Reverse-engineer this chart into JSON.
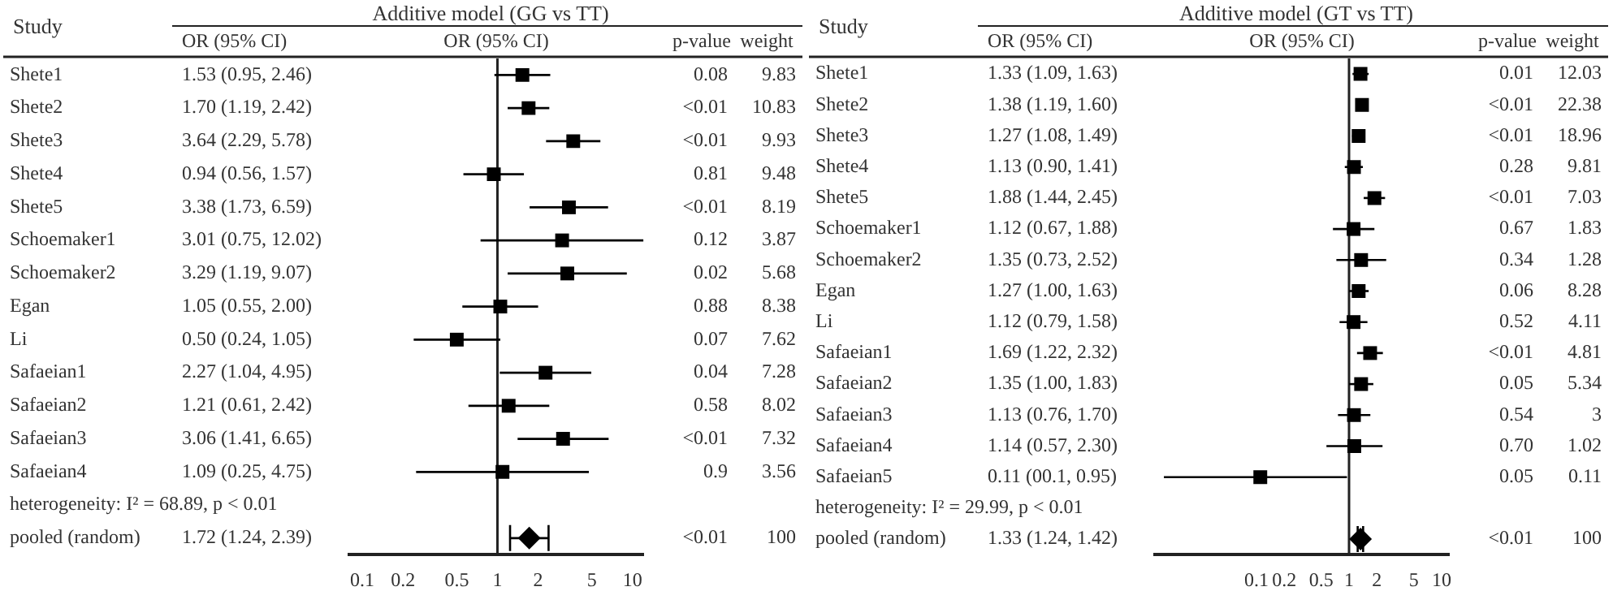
{
  "chart_data": [
    {
      "type": "scatter",
      "title": "Additive model (GG vs TT)",
      "ylabel": "Study",
      "orientation": "horizontal",
      "log": "x",
      "xlim": [
        0.08,
        12
      ],
      "xticks": [
        0.1,
        0.2,
        0.5,
        1,
        2,
        5,
        10
      ],
      "categories": [
        "Shete1",
        "Shete2",
        "Shete3",
        "Shete4",
        "Shete5",
        "Schoemaker1",
        "Schoemaker2",
        "Egan",
        "Li",
        "Safaeian1",
        "Safaeian2",
        "Safaeian3",
        "Safaeian4",
        "heterogeneity: I² = 68.89, p < 0.01",
        "pooled (random)"
      ],
      "series": [
        {
          "color": "#000000",
          "marker": "square",
          "values": [
            1.53,
            1.7,
            3.64,
            0.94,
            3.38,
            3.01,
            3.29,
            1.05,
            0.5,
            2.27,
            1.21,
            3.06,
            1.09,
            null,
            null
          ],
          "errors": [
            [
              0.95,
              2.46
            ],
            [
              1.19,
              2.42
            ],
            [
              2.29,
              5.78
            ],
            [
              0.56,
              1.57
            ],
            [
              1.73,
              6.59
            ],
            [
              0.75,
              12.02
            ],
            [
              1.19,
              9.07
            ],
            [
              0.55,
              2.0
            ],
            [
              0.24,
              1.05
            ],
            [
              1.04,
              4.95
            ],
            [
              0.61,
              2.42
            ],
            [
              1.41,
              6.65
            ],
            [
              0.25,
              4.75
            ],
            null,
            null
          ]
        },
        {
          "color": "#000000",
          "marker": "diamond",
          "values": [
            null,
            null,
            null,
            null,
            null,
            null,
            null,
            null,
            null,
            null,
            null,
            null,
            null,
            null,
            1.72
          ],
          "errors": [
            null,
            null,
            null,
            null,
            null,
            null,
            null,
            null,
            null,
            null,
            null,
            null,
            null,
            null,
            [
              1.24,
              2.39
            ]
          ]
        }
      ],
      "ref_lines": [
        {
          "axis": "x",
          "value": 1
        }
      ],
      "annotations": [
        "OR (95% CI)",
        "OR (95% CI)",
        "p-value",
        "weight",
        "1.53 (0.95, 2.46)",
        "0.08",
        "9.83",
        "1.70 (1.19, 2.42)",
        "<0.01",
        "10.83",
        "3.64 (2.29, 5.78)",
        "<0.01",
        "9.93",
        "0.94 (0.56, 1.57)",
        "0.81",
        "9.48",
        "3.38 (1.73, 6.59)",
        "<0.01",
        "8.19",
        "3.01 (0.75, 12.02)",
        "0.12",
        "3.87",
        "3.29 (1.19, 9.07)",
        "0.02",
        "5.68",
        "1.05 (0.55, 2.00)",
        "0.88",
        "8.38",
        "0.50 (0.24, 1.05)",
        "0.07",
        "7.62",
        "2.27 (1.04, 4.95)",
        "0.04",
        "7.28",
        "1.21 (0.61, 2.42)",
        "0.58",
        "8.02",
        "3.06 (1.41, 6.65)",
        "<0.01",
        "7.32",
        "1.09 (0.25, 4.75)",
        "0.9",
        "3.56",
        "1.72 (1.24, 2.39)",
        "<0.01",
        "100"
      ]
    },
    {
      "type": "scatter",
      "title": "Additive model (GT vs TT)",
      "ylabel": "Study",
      "orientation": "horizontal",
      "log": "x",
      "xlim": [
        0.008,
        12
      ],
      "xticks": [
        0.1,
        0.2,
        0.5,
        1,
        2,
        5,
        10
      ],
      "categories": [
        "Shete1",
        "Shete2",
        "Shete3",
        "Shete4",
        "Shete5",
        "Schoemaker1",
        "Schoemaker2",
        "Egan",
        "Li",
        "Safaeian1",
        "Safaeian2",
        "Safaeian3",
        "Safaeian4",
        "Safaeian5",
        "heterogeneity: I² = 29.99, p < 0.01",
        "pooled (random)"
      ],
      "series": [
        {
          "color": "#000000",
          "marker": "square",
          "values": [
            1.33,
            1.38,
            1.27,
            1.13,
            1.88,
            1.12,
            1.35,
            1.27,
            1.12,
            1.69,
            1.35,
            1.13,
            1.14,
            0.11,
            null,
            null
          ],
          "errors": [
            [
              1.09,
              1.63
            ],
            [
              1.19,
              1.6
            ],
            [
              1.08,
              1.49
            ],
            [
              0.9,
              1.41
            ],
            [
              1.44,
              2.45
            ],
            [
              0.67,
              1.88
            ],
            [
              0.73,
              2.52
            ],
            [
              1.0,
              1.63
            ],
            [
              0.79,
              1.58
            ],
            [
              1.22,
              2.32
            ],
            [
              1.0,
              1.83
            ],
            [
              0.76,
              1.7
            ],
            [
              0.57,
              2.3
            ],
            [
              0.01,
              0.95
            ],
            null,
            null
          ]
        },
        {
          "color": "#000000",
          "marker": "diamond",
          "values": [
            null,
            null,
            null,
            null,
            null,
            null,
            null,
            null,
            null,
            null,
            null,
            null,
            null,
            null,
            null,
            1.33
          ],
          "errors": [
            null,
            null,
            null,
            null,
            null,
            null,
            null,
            null,
            null,
            null,
            null,
            null,
            null,
            null,
            null,
            [
              1.24,
              1.42
            ]
          ]
        }
      ],
      "ref_lines": [
        {
          "axis": "x",
          "value": 1
        }
      ],
      "annotations": [
        "OR (95% CI)",
        "OR (95% CI)",
        "p-value",
        "weight",
        "1.33 (1.09, 1.63)",
        "0.01",
        "12.03",
        "1.38 (1.19, 1.60)",
        "<0.01",
        "22.38",
        "1.27 (1.08, 1.49)",
        "<0.01",
        "18.96",
        "1.13 (0.90, 1.41)",
        "0.28",
        "9.81",
        "1.88 (1.44, 2.45)",
        "<0.01",
        "7.03",
        "1.12 (0.67, 1.88)",
        "0.67",
        "1.83",
        "1.35 (0.73, 2.52)",
        "0.34",
        "1.28",
        "1.27 (1.00, 1.63)",
        "0.06",
        "8.28",
        "1.12 (0.79, 1.58)",
        "0.52",
        "4.11",
        "1.69 (1.22, 2.32)",
        "<0.01",
        "4.81",
        "1.35 (1.00, 1.83)",
        "0.05",
        "5.34",
        "1.13 (0.76, 1.70)",
        "0.54",
        "3",
        "1.14 (0.57, 2.30)",
        "0.70",
        "1.02",
        "0.11 (00.1, 0.95)",
        "0.05",
        "0.11",
        "1.33 (1.24, 1.42)",
        "<0.01",
        "100"
      ]
    }
  ]
}
